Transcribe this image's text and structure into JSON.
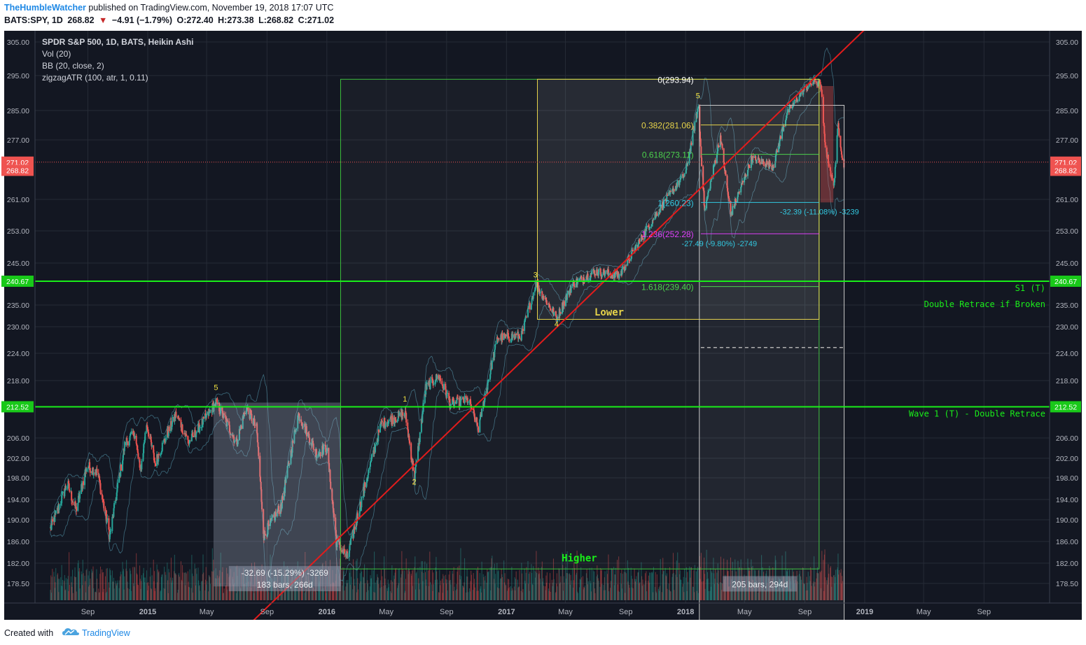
{
  "header": {
    "author": "TheHumbleWatcher",
    "published": "published on TradingView.com, November 19, 2018 17:07 UTC",
    "symbol": "BATS:SPY, 1D",
    "last": "268.82",
    "change": "−4.91 (−1.79%)",
    "ohlc": {
      "o": "O:272.40",
      "h": "H:273.38",
      "l": "L:268.82",
      "c": "C:271.02"
    }
  },
  "legend": {
    "title": "SPDR S&P 500, 1D, BATS, Heikin Ashi",
    "vol": "Vol (20)",
    "bb": "BB (20, close, 2)",
    "zigzag": "zigzagATR (100, atr, 1, 0.11)"
  },
  "footer": {
    "created": "Created with",
    "brand": "TradingView"
  },
  "colors": {
    "background": "#131722",
    "up_candle": "#26a69a",
    "down_candle": "#ef5350",
    "trendline": "#e31c1c",
    "support": "#19ee19",
    "fib_box": "#e6d34a",
    "measure_box": "#4a9b4a"
  },
  "chart_data": {
    "type": "candlestick",
    "title": "SPDR S&P 500, 1D, BATS, Heikin Ashi",
    "y_ticks": [
      "305.00",
      "295.00",
      "285.00",
      "277.00",
      "261.00",
      "253.00",
      "245.00",
      "235.00",
      "230.00",
      "224.00",
      "218.00",
      "206.00",
      "202.00",
      "198.00",
      "194.00",
      "190.00",
      "186.00",
      "182.00",
      "178.50"
    ],
    "y_tick_values": [
      305,
      295,
      285,
      277,
      261,
      253,
      245,
      235,
      230,
      224,
      218,
      206,
      202,
      198,
      194,
      190,
      186,
      182,
      178.5
    ],
    "price_badges": [
      {
        "label": "271.02",
        "value": 271.02,
        "color": "#ef5350"
      },
      {
        "label": "268.82",
        "value": 268.82,
        "color": "#ef5350"
      },
      {
        "label": "240.67",
        "value": 240.67,
        "color": "#19c919"
      },
      {
        "label": "212.52",
        "value": 212.52,
        "color": "#19c919"
      }
    ],
    "x_ticks": [
      {
        "label": "Sep",
        "date": "2014-09-01",
        "bold": false
      },
      {
        "label": "2015",
        "date": "2015-01-01",
        "bold": true
      },
      {
        "label": "May",
        "date": "2015-05-01",
        "bold": false
      },
      {
        "label": "Sep",
        "date": "2015-09-01",
        "bold": false
      },
      {
        "label": "2016",
        "date": "2016-01-01",
        "bold": true
      },
      {
        "label": "May",
        "date": "2016-05-01",
        "bold": false
      },
      {
        "label": "Sep",
        "date": "2016-09-01",
        "bold": false
      },
      {
        "label": "2017",
        "date": "2017-01-01",
        "bold": true
      },
      {
        "label": "May",
        "date": "2017-05-01",
        "bold": false
      },
      {
        "label": "Sep",
        "date": "2017-09-01",
        "bold": false
      },
      {
        "label": "2018",
        "date": "2018-01-01",
        "bold": true
      },
      {
        "label": "May",
        "date": "2018-05-01",
        "bold": false
      },
      {
        "label": "Sep",
        "date": "2018-09-01",
        "bold": false
      },
      {
        "label": "2019",
        "date": "2019-01-01",
        "bold": true
      },
      {
        "label": "May",
        "date": "2019-05-01",
        "bold": false
      },
      {
        "label": "Sep",
        "date": "2019-09-01",
        "bold": false
      }
    ],
    "close_path": [
      [
        "2014-06-15",
        188
      ],
      [
        "2014-07-20",
        197
      ],
      [
        "2014-08-07",
        192
      ],
      [
        "2014-08-30",
        200.5
      ],
      [
        "2014-09-20",
        199
      ],
      [
        "2014-10-15",
        187
      ],
      [
        "2014-11-15",
        205
      ],
      [
        "2014-12-05",
        207
      ],
      [
        "2014-12-16",
        199
      ],
      [
        "2014-12-29",
        209
      ],
      [
        "2015-01-15",
        201
      ],
      [
        "2015-02-27",
        211
      ],
      [
        "2015-03-25",
        205
      ],
      [
        "2015-05-20",
        213.5
      ],
      [
        "2015-06-30",
        205
      ],
      [
        "2015-07-20",
        212.5
      ],
      [
        "2015-08-10",
        208
      ],
      [
        "2015-08-25",
        187
      ],
      [
        "2015-09-30",
        193
      ],
      [
        "2015-11-03",
        211
      ],
      [
        "2015-12-10",
        203
      ],
      [
        "2015-12-31",
        204
      ],
      [
        "2016-01-20",
        186
      ],
      [
        "2016-02-11",
        183
      ],
      [
        "2016-04-20",
        209
      ],
      [
        "2016-06-08",
        211
      ],
      [
        "2016-06-27",
        198
      ],
      [
        "2016-07-20",
        216.5
      ],
      [
        "2016-08-15",
        219
      ],
      [
        "2016-09-09",
        213
      ],
      [
        "2016-10-15",
        214
      ],
      [
        "2016-11-04",
        208
      ],
      [
        "2016-12-13",
        227.5
      ],
      [
        "2017-01-31",
        228
      ],
      [
        "2017-03-01",
        240
      ],
      [
        "2017-04-13",
        232
      ],
      [
        "2017-05-15",
        240
      ],
      [
        "2017-06-30",
        243
      ],
      [
        "2017-08-18",
        242
      ],
      [
        "2017-10-31",
        257
      ],
      [
        "2017-12-31",
        268
      ],
      [
        "2018-01-26",
        286
      ],
      [
        "2018-02-08",
        258
      ],
      [
        "2018-03-12",
        278
      ],
      [
        "2018-04-02",
        257
      ],
      [
        "2018-05-15",
        272
      ],
      [
        "2018-06-28",
        270
      ],
      [
        "2018-07-25",
        284
      ],
      [
        "2018-08-29",
        291
      ],
      [
        "2018-09-20",
        293.5
      ],
      [
        "2018-10-03",
        292
      ],
      [
        "2018-10-11",
        276
      ],
      [
        "2018-10-29",
        264
      ],
      [
        "2018-11-07",
        281
      ],
      [
        "2018-11-19",
        269
      ]
    ],
    "trendline": {
      "start": [
        "2015-08-01",
        172
      ],
      "end": [
        "2019-01-10",
        310
      ]
    },
    "horizontal_levels": [
      {
        "value": 240.67,
        "label": "S1 (T)",
        "note": "Double Retrace if Broken"
      },
      {
        "value": 212.52,
        "label": "Wave 1 (T) - Double Retrace"
      }
    ],
    "fib_levels": [
      {
        "label": "0(293.94)",
        "value": 293.94
      },
      {
        "label": "0.382(281.06)",
        "value": 281.06
      },
      {
        "label": "0.618(273.11)",
        "value": 273.11
      },
      {
        "label": "1(260.23)",
        "value": 260.23
      },
      {
        "label": "1.236(252.28)",
        "value": 252.28
      },
      {
        "label": "1.618(239.40)",
        "value": 239.4
      }
    ],
    "boxes": [
      {
        "label": "Higher"
      },
      {
        "label": "Lower"
      }
    ],
    "measurements": [
      {
        "line1": "-32.69 (-15.29%) -3269",
        "line2": "183 bars, 266d"
      },
      {
        "line1": "205 bars, 294d"
      },
      {
        "line1": "-32.39 (-11.08%) -3239"
      },
      {
        "line1": "-27.49 (-9.80%) -2749"
      }
    ],
    "wave_labels": [
      "5",
      "1",
      "2",
      "3",
      "4",
      "5"
    ]
  }
}
